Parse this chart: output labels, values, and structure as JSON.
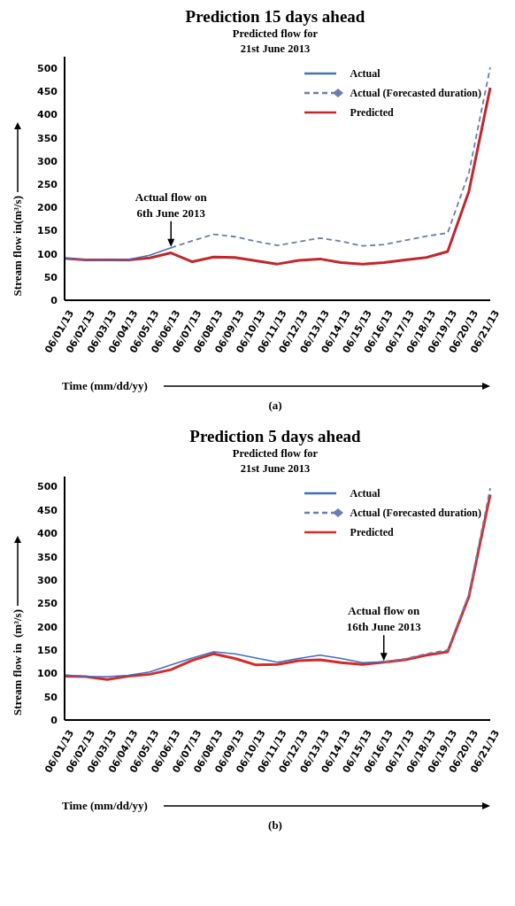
{
  "chart_data": [
    {
      "type": "line",
      "title": "Prediction 15 days ahead",
      "subtitle": "Predicted flow for 21st June 2013",
      "xlabel": "Time (mm/dd/yy)",
      "ylabel": "Stream flow in(m³/s)",
      "categories": [
        "06/01/13",
        "06/02/13",
        "06/03/13",
        "06/04/13",
        "06/05/13",
        "06/06/13",
        "06/07/13",
        "06/08/13",
        "06/09/13",
        "06/10/13",
        "06/11/13",
        "06/12/13",
        "06/13/13",
        "06/14/13",
        "06/15/13",
        "06/16/13",
        "06/17/13",
        "06/18/13",
        "06/19/13",
        "06/20/13",
        "06/21/13"
      ],
      "series": [
        {
          "name": "Actual",
          "color": "#4a6fb5",
          "line_style": "solid",
          "values": [
            90,
            87,
            86,
            88,
            97,
            113,
            null,
            null,
            null,
            null,
            null,
            null,
            null,
            null,
            null,
            null,
            null,
            null,
            null,
            null,
            null
          ]
        },
        {
          "name": "Actual (Forecasted duration)",
          "color": "#6c7cae",
          "line_style": "dashed",
          "values": [
            null,
            null,
            null,
            null,
            null,
            113,
            128,
            142,
            137,
            127,
            118,
            126,
            134,
            127,
            117,
            120,
            129,
            138,
            145,
            275,
            502
          ]
        },
        {
          "name": "Predicted",
          "color": "#c0282d",
          "line_style": "solid",
          "values": [
            90,
            87,
            87,
            87,
            91,
            102,
            83,
            93,
            92,
            85,
            78,
            86,
            89,
            81,
            78,
            81,
            87,
            92,
            105,
            235,
            458
          ]
        }
      ],
      "ylim": [
        0,
        525
      ],
      "yticks": [
        0,
        50,
        100,
        150,
        200,
        250,
        300,
        350,
        400,
        450,
        500
      ],
      "grid": false,
      "legend": "top right",
      "annotations": [
        {
          "text": "Actual flow on 6th June 2013",
          "x": "06/06/13",
          "y": 113
        },
        "(a)"
      ]
    },
    {
      "type": "line",
      "title": "Prediction 5 days ahead",
      "subtitle": "Predicted flow for 21st June 2013",
      "xlabel": "Time (mm/dd/yy)",
      "ylabel": "Stream flow in  (m³/s)",
      "categories": [
        "06/01/13",
        "06/02/13",
        "06/03/13",
        "06/04/13",
        "06/05/13",
        "06/06/13",
        "06/07/13",
        "06/08/13",
        "06/09/13",
        "06/10/13",
        "06/11/13",
        "06/12/13",
        "06/13/13",
        "06/14/13",
        "06/15/13",
        "06/16/13",
        "06/17/13",
        "06/18/13",
        "06/19/13",
        "06/20/13",
        "06/21/13"
      ],
      "series": [
        {
          "name": "Actual",
          "color": "#3f6fc0",
          "line_style": "solid",
          "values": [
            97,
            93,
            93,
            96,
            103,
            118,
            133,
            146,
            142,
            133,
            124,
            132,
            139,
            132,
            123,
            125,
            null,
            null,
            null,
            null,
            null
          ]
        },
        {
          "name": "Actual (Forecasted duration)",
          "color": "#6c7cae",
          "line_style": "dashed",
          "values": [
            null,
            null,
            null,
            null,
            null,
            null,
            null,
            null,
            null,
            null,
            null,
            null,
            null,
            null,
            null,
            125,
            131,
            142,
            150,
            270,
            497
          ]
        },
        {
          "name": "Predicted",
          "color": "#d62a2a",
          "line_style": "solid",
          "values": [
            94,
            93,
            87,
            94,
            98,
            108,
            128,
            142,
            132,
            118,
            119,
            127,
            129,
            123,
            119,
            124,
            129,
            139,
            146,
            265,
            483
          ]
        }
      ],
      "ylim": [
        0,
        522
      ],
      "yticks": [
        0,
        50,
        100,
        150,
        200,
        250,
        300,
        350,
        400,
        450,
        500
      ],
      "grid": false,
      "legend": "top right",
      "annotations": [
        {
          "text": "Actual flow on 16th June 2013",
          "x": "06/16/13",
          "y": 125
        },
        "(b)"
      ]
    }
  ]
}
